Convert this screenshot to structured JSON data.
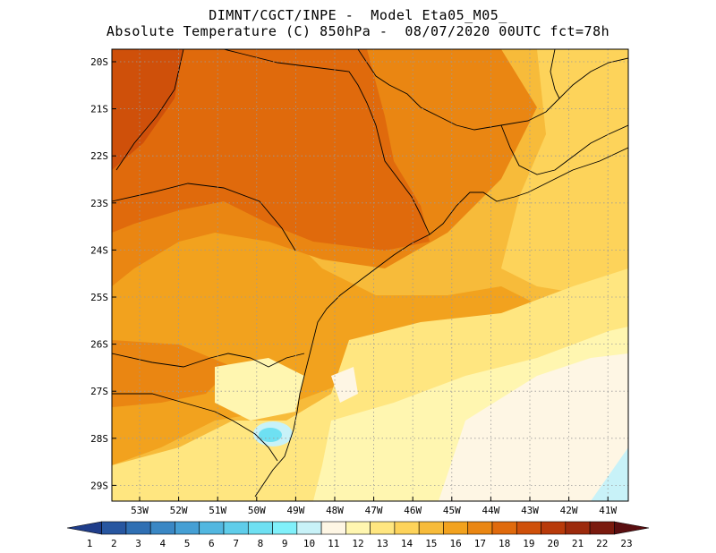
{
  "title": {
    "line1": "DIMNT/CGCT/INPE -  Model Eta05_M05_",
    "line2": "Absolute Temperature (C) 850hPa -  08/07/2020 00UTC fct=78h"
  },
  "map": {
    "lat_labels": [
      "20S",
      "21S",
      "22S",
      "23S",
      "24S",
      "25S",
      "26S",
      "27S",
      "28S",
      "29S"
    ],
    "lon_labels": [
      "53W",
      "52W",
      "51W",
      "50W",
      "49W",
      "48W",
      "47W",
      "46W",
      "45W",
      "44W",
      "43W",
      "42W",
      "41W"
    ]
  },
  "colorbar": {
    "labels": [
      "1",
      "2",
      "3",
      "4",
      "5",
      "6",
      "7",
      "8",
      "9",
      "10",
      "11",
      "12",
      "13",
      "14",
      "15",
      "16",
      "17",
      "18",
      "19",
      "20",
      "21",
      "22",
      "23"
    ],
    "colors": [
      "#1f3d8a",
      "#2756a0",
      "#2f6fb3",
      "#3a87c4",
      "#459fd4",
      "#52b7e0",
      "#5fcdea",
      "#6ee0f2",
      "#80f0fa",
      "#c8f2f8",
      "#fef6e4",
      "#fff6b0",
      "#ffe680",
      "#fdd35a",
      "#f7bb3a",
      "#f2a21e",
      "#ea8612",
      "#e06a0c",
      "#cf500a",
      "#b83a0a",
      "#9c2a0c",
      "#7a1a0e",
      "#5a0e10"
    ]
  }
}
